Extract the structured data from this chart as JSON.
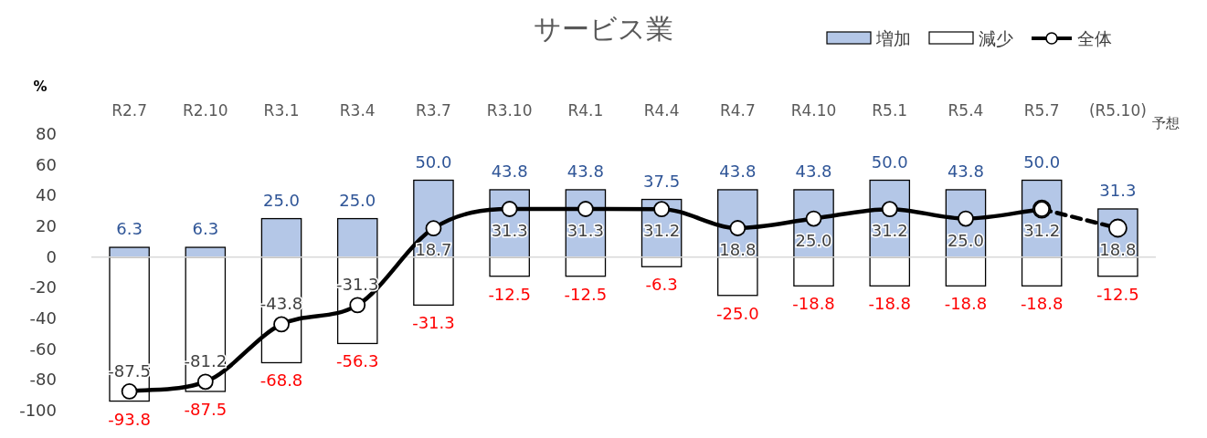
{
  "chart_data": {
    "type": "bar",
    "title": "サービス業",
    "ylabel": "%",
    "stacked": true,
    "legend": "top right",
    "ylim": [
      -100,
      80
    ],
    "yticks": [
      -100,
      -80,
      -60,
      -40,
      -20,
      0,
      20,
      40,
      60,
      80
    ],
    "categories": [
      "R2.7",
      "R2.10",
      "R3.1",
      "R3.4",
      "R3.7",
      "R3.10",
      "R4.1",
      "R4.4",
      "R4.7",
      "R4.10",
      "R5.1",
      "R5.4",
      "R5.7",
      "(R5.10)"
    ],
    "annotations": [
      "予想"
    ],
    "series": [
      {
        "name": "増加",
        "color": "#b4c7e7",
        "values": [
          6.3,
          6.3,
          25.0,
          25.0,
          50.0,
          43.8,
          43.8,
          37.5,
          43.8,
          43.8,
          50.0,
          43.8,
          50.0,
          31.3
        ],
        "value_labels": [
          "6.3",
          "6.3",
          "25.0",
          "25.0",
          "50.0",
          "43.8",
          "43.8",
          "37.5",
          "43.8",
          "43.8",
          "50.0",
          "43.8",
          "50.0",
          "31.3"
        ]
      },
      {
        "name": "減少",
        "color": "#ffffff",
        "values": [
          -93.8,
          -87.5,
          -68.8,
          -56.3,
          -31.3,
          -12.5,
          -12.5,
          -6.3,
          -25.0,
          -18.8,
          -18.8,
          -18.8,
          -18.8,
          -12.5
        ],
        "value_labels": [
          "-93.8",
          "-87.5",
          "-68.8",
          "-56.3",
          "-31.3",
          "-12.5",
          "-12.5",
          "-6.3",
          "-25.0",
          "-18.8",
          "-18.8",
          "-18.8",
          "-18.8",
          "-12.5"
        ]
      },
      {
        "name": "全体",
        "type": "line",
        "color": "#000000",
        "marker": "circle",
        "line_style": "solid",
        "values": [
          -87.5,
          -81.2,
          -43.8,
          -31.3,
          18.7,
          31.3,
          31.3,
          31.2,
          18.8,
          25.0,
          31.2,
          25.0,
          31.2,
          null
        ],
        "value_labels": [
          "-87.5",
          "-81.2",
          "-43.8",
          "-31.3",
          "18.7",
          "31.3",
          "31.3",
          "31.2",
          "18.8",
          "25.0",
          "31.2",
          "25.0",
          "31.2",
          null
        ]
      },
      {
        "type": "line",
        "color": "#000000",
        "marker": "circle",
        "line_style": "dashed",
        "values": [
          null,
          null,
          null,
          null,
          null,
          null,
          null,
          null,
          null,
          null,
          null,
          null,
          31.2,
          18.8
        ],
        "value_labels": [
          null,
          null,
          null,
          null,
          null,
          null,
          null,
          null,
          null,
          null,
          null,
          null,
          null,
          "18.8"
        ]
      }
    ]
  }
}
